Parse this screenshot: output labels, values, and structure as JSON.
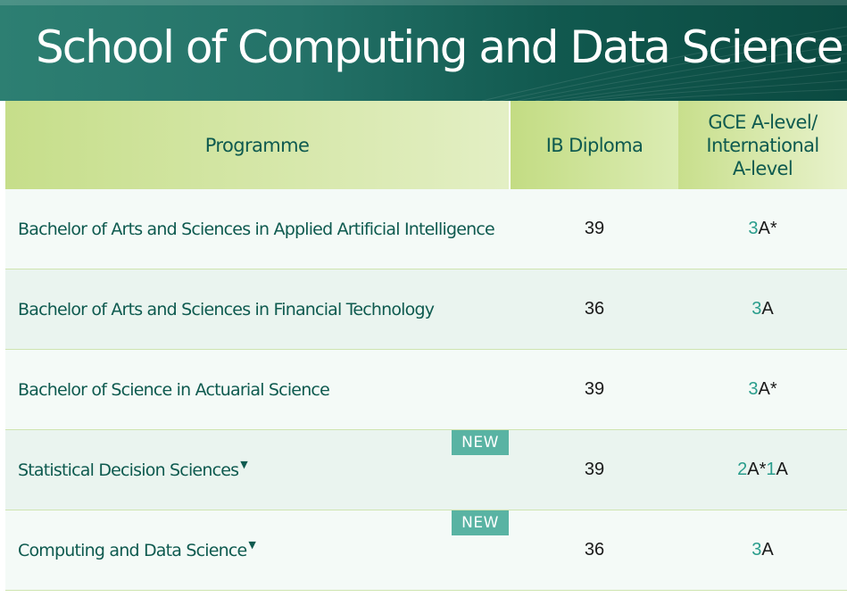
{
  "header": {
    "title": "School of Computing and Data Science"
  },
  "table": {
    "columns": {
      "programme": "Programme",
      "ib": "IB Diploma",
      "gce": "GCE A-level/ International A-level"
    },
    "rows": [
      {
        "programme": "Bachelor of Arts and Sciences in Applied Artificial Intelligence",
        "ib": "39",
        "gce_num1": "3",
        "gce_grade1": "A*",
        "gce_num2": "",
        "gce_grade2": "",
        "new_badge": ""
      },
      {
        "programme": "Bachelor of Arts and Sciences in Financial Technology",
        "ib": "36",
        "gce_num1": "3",
        "gce_grade1": "A",
        "gce_num2": "",
        "gce_grade2": "",
        "new_badge": ""
      },
      {
        "programme": "Bachelor of Science in Actuarial Science",
        "ib": "39",
        "gce_num1": "3",
        "gce_grade1": "A*",
        "gce_num2": "",
        "gce_grade2": "",
        "new_badge": ""
      },
      {
        "programme": "Statistical Decision Sciences",
        "programme_marker": "▼",
        "ib": "39",
        "gce_num1": "2",
        "gce_grade1": "A*",
        "gce_num2": "1",
        "gce_grade2": "A",
        "new_badge": "NEW"
      },
      {
        "programme": "Computing and Data Science",
        "programme_marker": "▼",
        "ib": "36",
        "gce_num1": "3",
        "gce_grade1": "A",
        "gce_num2": "",
        "gce_grade2": "",
        "new_badge": "NEW"
      }
    ]
  },
  "colors": {
    "banner_dark": "#0b4a41",
    "banner_light": "#2d7f72",
    "header_green": "#c6de8a",
    "text_teal": "#0e5a4f",
    "accent_teal": "#2a9d8c",
    "badge": "#59b3a3"
  }
}
